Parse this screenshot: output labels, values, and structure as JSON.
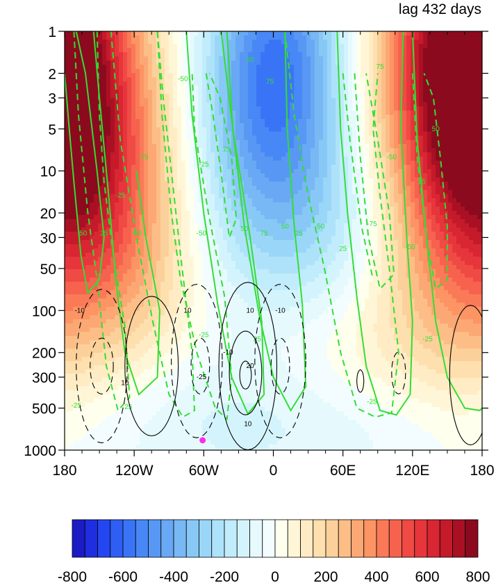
{
  "chart_data": {
    "type": "heatmap",
    "title_right": "lag 432 days",
    "x_ticks": [
      "180",
      "120W",
      "60W",
      "0",
      "60E",
      "120E",
      "180"
    ],
    "y_ticks": [
      "1",
      "2",
      "3",
      "5",
      "10",
      "20",
      "30",
      "50",
      "100",
      "200",
      "300",
      "500",
      "1000"
    ],
    "y_scale": "log",
    "y_reversed": true,
    "xlim": [
      -180,
      180
    ],
    "ylim": [
      1000,
      1
    ],
    "shading": {
      "colorbar_ticks": [
        "-800",
        "-600",
        "-400",
        "-200",
        "0",
        "200",
        "400",
        "600",
        "800"
      ],
      "levels": [
        -800,
        -750,
        -700,
        -650,
        -600,
        -550,
        -500,
        -450,
        -400,
        -350,
        -300,
        -250,
        -200,
        -150,
        -100,
        -50,
        0,
        50,
        100,
        150,
        200,
        250,
        300,
        350,
        400,
        450,
        500,
        550,
        600,
        650,
        700,
        750,
        800
      ],
      "colors": [
        "#1c1cc4",
        "#1e2ee0",
        "#2446f0",
        "#2e5ef4",
        "#3a74f6",
        "#4888f6",
        "#5898f4",
        "#68a8f4",
        "#78b8f4",
        "#88c8f6",
        "#9ad6f8",
        "#aee2fa",
        "#c0ecfc",
        "#d4f4fd",
        "#e6fafe",
        "#f3fdff",
        "#ffffee",
        "#fff6d8",
        "#ffecc4",
        "#fde0ae",
        "#fcd09a",
        "#fcbe86",
        "#fca874",
        "#fc9464",
        "#fa7a58",
        "#f6624e",
        "#f04a44",
        "#e6363c",
        "#d82632",
        "#c41a2a",
        "#aa1024",
        "#8c0a1e"
      ]
    },
    "series": [
      {
        "name": "green contours",
        "values": [
          -75,
          -50,
          -25,
          25,
          50,
          75
        ]
      },
      {
        "name": "black contours",
        "values": [
          -20,
          -10,
          10,
          20
        ]
      }
    ],
    "marker": {
      "lon": -61,
      "pressure": 850,
      "color": "#ff2cf0"
    }
  }
}
